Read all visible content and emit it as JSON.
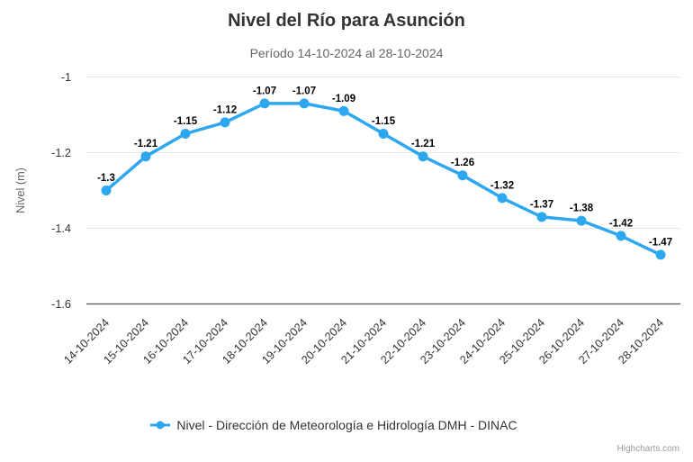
{
  "chart_data": {
    "type": "line",
    "title": "Nivel del Río para Asunción",
    "subtitle": "Período 14-10-2024 al 28-10-2024",
    "ylabel": "Nivel (m)",
    "xlabel": "",
    "categories": [
      "14-10-2024",
      "15-10-2024",
      "16-10-2024",
      "17-10-2024",
      "18-10-2024",
      "19-10-2024",
      "20-10-2024",
      "21-10-2024",
      "22-10-2024",
      "23-10-2024",
      "24-10-2024",
      "25-10-2024",
      "26-10-2024",
      "27-10-2024",
      "28-10-2024"
    ],
    "series": [
      {
        "name": "Nivel - Dirección de Meteorología e Hidrología DMH - DINAC",
        "values": [
          -1.3,
          -1.21,
          -1.15,
          -1.12,
          -1.07,
          -1.07,
          -1.09,
          -1.15,
          -1.21,
          -1.26,
          -1.32,
          -1.37,
          -1.38,
          -1.42,
          -1.47
        ]
      }
    ],
    "ylim": [
      -1.6,
      -1
    ],
    "yticks": [
      -1,
      -1.2,
      -1.4,
      -1.6
    ],
    "grid": "horizontal-only",
    "legend_position": "bottom",
    "data_labels_shown": true,
    "x_label_rotation": -45
  },
  "colors": {
    "series": "#2da8f0",
    "grid": "#e6e6e6",
    "axis_line": "#555555",
    "tick_label": "#333333",
    "axis_title": "#666666",
    "data_label": "#000000",
    "data_label_outline": "#ffffff"
  },
  "credits": "Highcharts.com"
}
